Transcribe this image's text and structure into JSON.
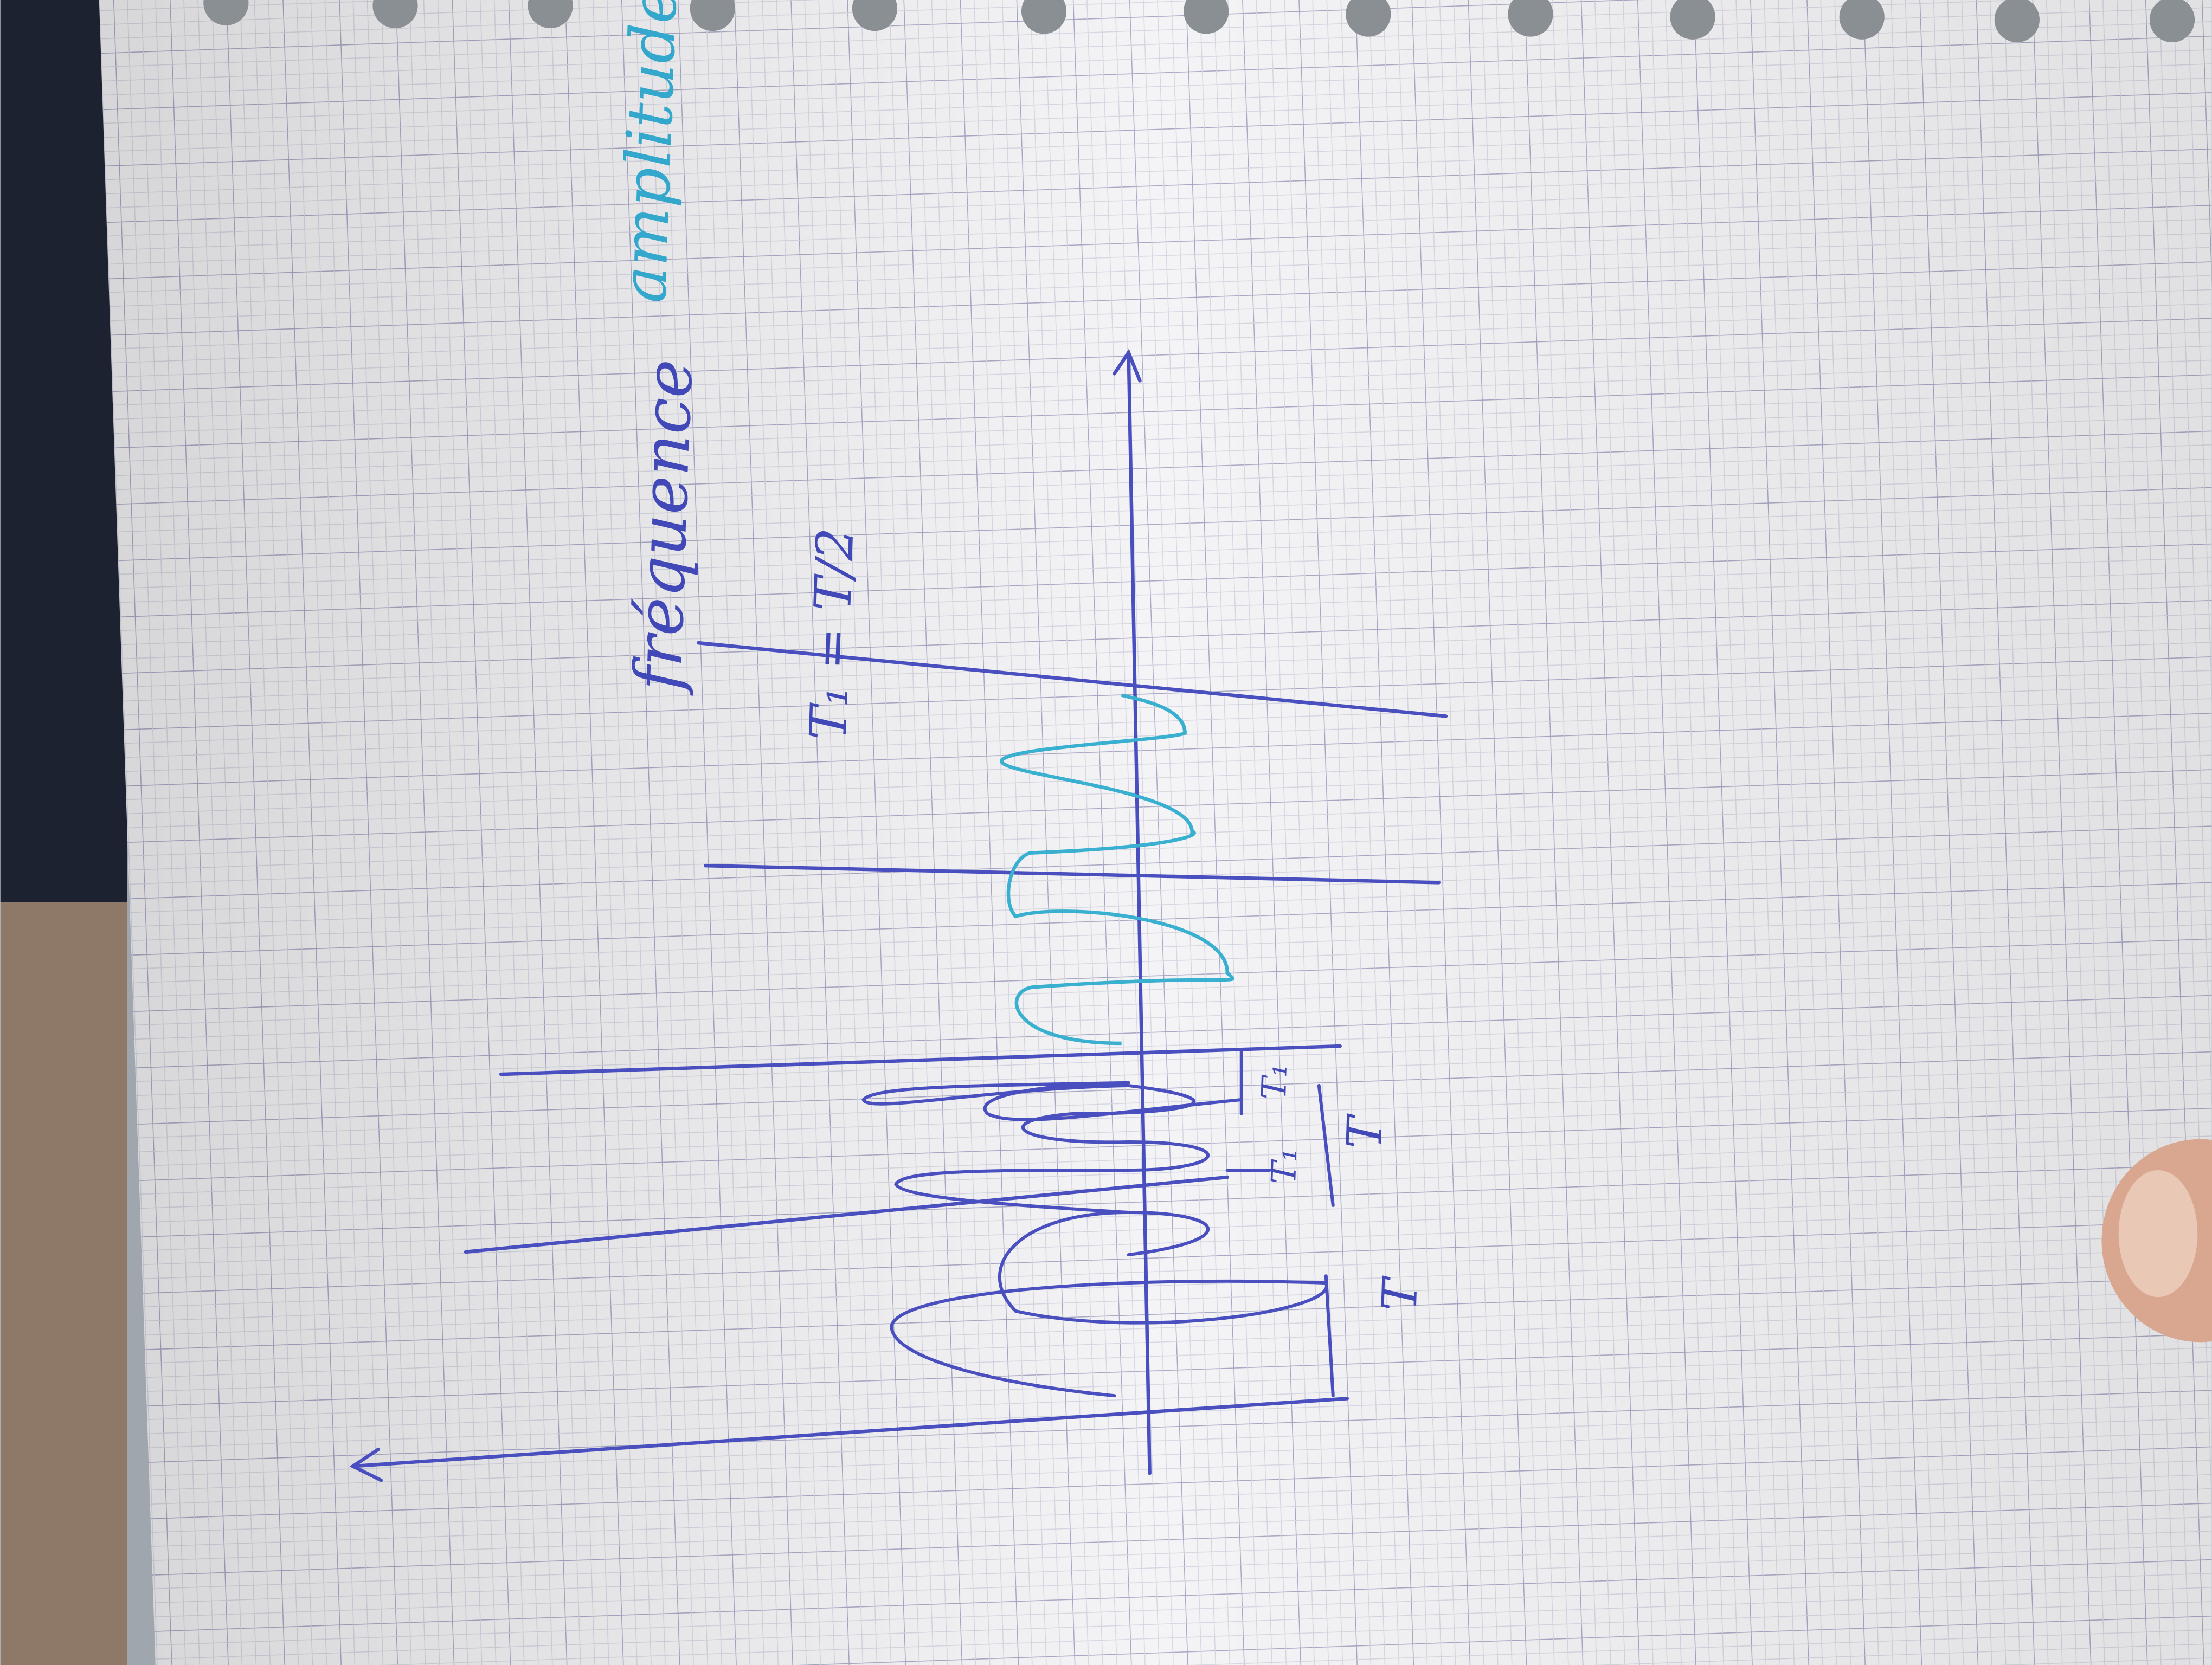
{
  "sketch": {
    "labels": {
      "frequency": "fréquence",
      "amplitude": "amplitude",
      "half_period": "T₁ = T/2",
      "period_a": "T",
      "period_b": "T",
      "sub_period_a": "T₁",
      "sub_period_b": "T₁"
    }
  }
}
